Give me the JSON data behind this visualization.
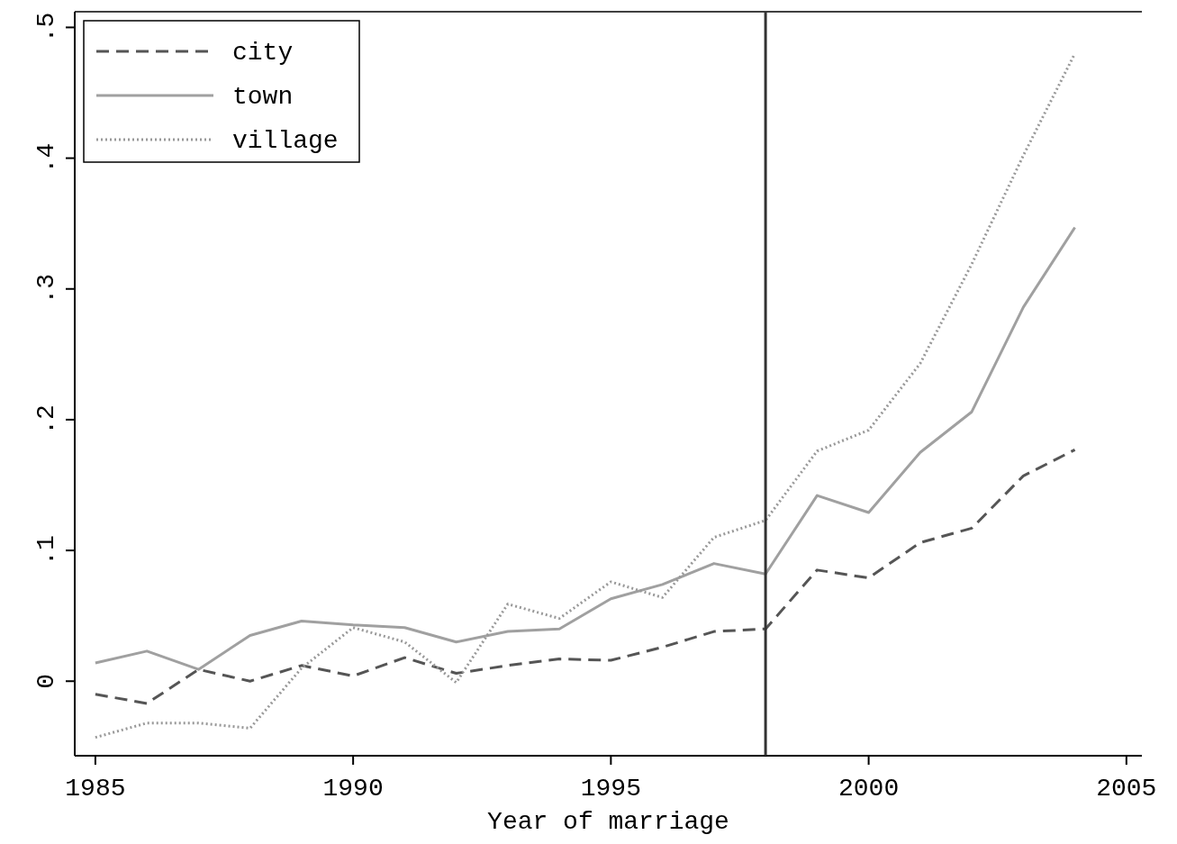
{
  "chart_data": {
    "type": "line",
    "xlabel": "Year of marriage",
    "x": [
      1985,
      1986,
      1987,
      1988,
      1989,
      1990,
      1991,
      1992,
      1993,
      1994,
      1995,
      1996,
      1997,
      1998,
      1999,
      2000,
      2001,
      2002,
      2003,
      2004
    ],
    "series": [
      {
        "name": "city",
        "color": "#555555",
        "line_style": "dashed",
        "values": [
          -0.01,
          -0.017,
          0.009,
          0,
          0.012,
          0.004,
          0.018,
          0.006,
          0.012,
          0.017,
          0.016,
          0.026,
          0.038,
          0.04,
          0.085,
          0.079,
          0.106,
          0.117,
          0.157,
          0.177
        ]
      },
      {
        "name": "town",
        "color": "#a0a0a0",
        "line_style": "solid",
        "values": [
          0.014,
          0.023,
          0.009,
          0.035,
          0.046,
          0.043,
          0.041,
          0.03,
          0.038,
          0.04,
          0.063,
          0.074,
          0.09,
          0.082,
          0.142,
          0.129,
          0.175,
          0.206,
          0.286,
          0.347
        ]
      },
      {
        "name": "village",
        "color": "#999999",
        "line_style": "dotted",
        "values": [
          -0.043,
          -0.032,
          -0.032,
          -0.036,
          0.01,
          0.041,
          0.03,
          -0.001,
          0.059,
          0.048,
          0.076,
          0.064,
          0.11,
          0.123,
          0.176,
          0.192,
          0.243,
          0.319,
          0.402,
          0.48
        ]
      }
    ],
    "xlim": [
      1984.6,
      2005.3
    ],
    "ylim": [
      -0.057,
      0.512
    ],
    "xticks": [
      1985,
      1990,
      1995,
      2000,
      2005
    ],
    "yticks": [
      0,
      {
        "value": 0.1,
        "label": ".1"
      },
      {
        "value": 0.2,
        "label": ".2"
      },
      {
        "value": 0.3,
        "label": ".3"
      },
      {
        "value": 0.4,
        "label": ".4"
      },
      {
        "value": 0.5,
        "label": ".5"
      }
    ],
    "ref_lines": [
      {
        "axis": "x",
        "value": 1998,
        "color": "#333333"
      }
    ],
    "legend": "top left",
    "grid": false,
    "marker": "none"
  }
}
